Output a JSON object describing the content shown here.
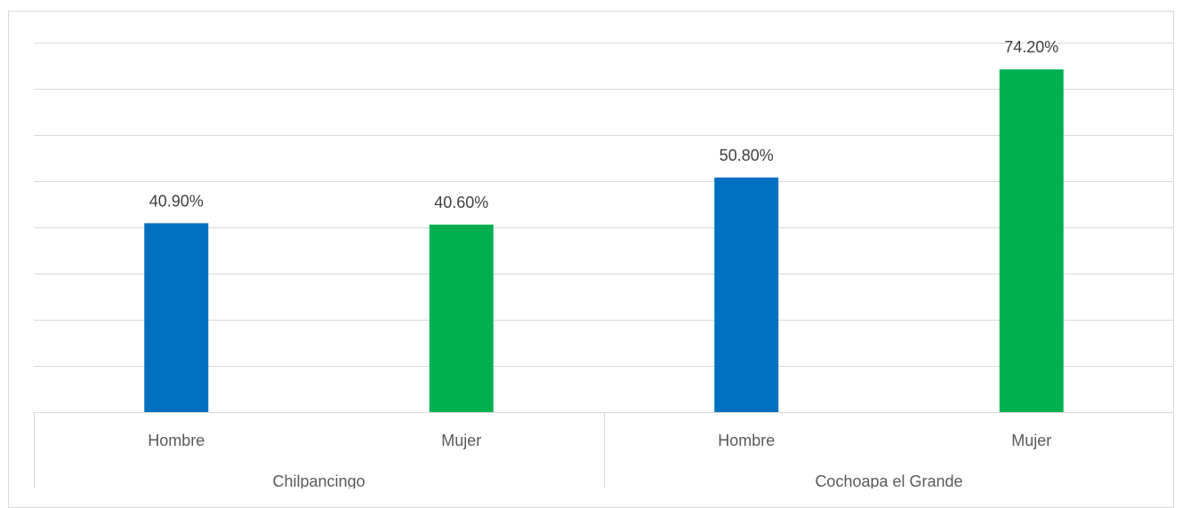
{
  "chart_data": {
    "type": "bar",
    "groups": [
      {
        "name": "Chilpancingo",
        "categories": [
          "Hombre",
          "Mujer"
        ],
        "values": [
          40.9,
          40.6
        ],
        "labels": [
          "40.90%",
          "40.60%"
        ]
      },
      {
        "name": "Cochoapa el Grande",
        "categories": [
          "Hombre",
          "Mujer"
        ],
        "values": [
          50.8,
          74.2
        ],
        "labels": [
          "50.80%",
          "74.20%"
        ]
      }
    ],
    "ylim": [
      0,
      80
    ],
    "gridlines": true,
    "colors": {
      "Hombre": "#0070c0",
      "Mujer": "#00b050"
    },
    "gridline_color": "#d9d9d9"
  }
}
